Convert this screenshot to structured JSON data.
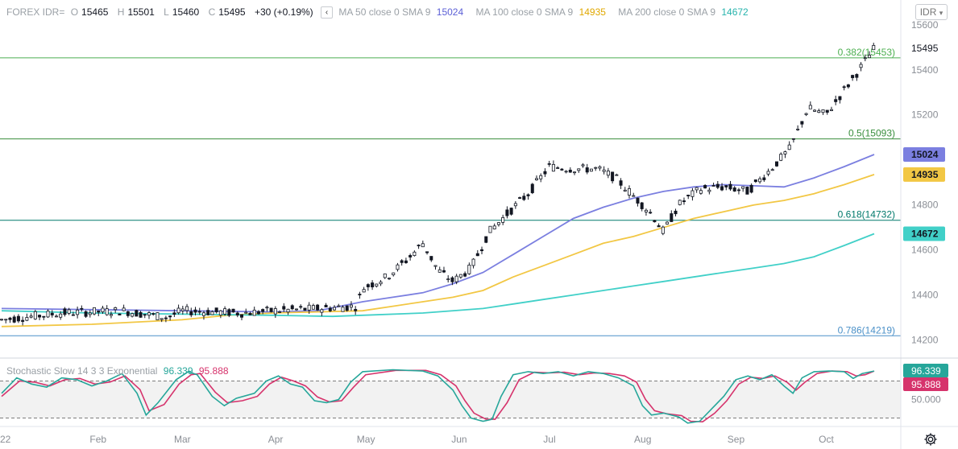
{
  "header": {
    "symbol": "FOREX IDR=",
    "o_label": "O",
    "o_value": "15465",
    "h_label": "H",
    "h_value": "15501",
    "l_label": "L",
    "l_value": "15460",
    "c_label": "C",
    "c_value": "15495",
    "change": "+30 (+0.19%)",
    "collapse_icon": "‹",
    "currency_button": "IDR",
    "currency_icon": "chevron-down-icon"
  },
  "moving_averages": [
    {
      "label": "MA 50 close 0 SMA 9",
      "value": "15024",
      "color": "#7b7fe0"
    },
    {
      "label": "MA 100 close 0 SMA 9",
      "value": "14935",
      "color": "#f2c744"
    },
    {
      "label": "MA 200 close 0 SMA 9",
      "value": "14672",
      "color": "#41d0c8"
    }
  ],
  "price_axis": {
    "ticks": [
      15600,
      15400,
      15200,
      15000,
      14800,
      14600,
      14400,
      14200
    ],
    "labels": [
      "15600",
      "15400",
      "15200",
      "",
      "14800",
      "14600",
      "14400",
      "14200"
    ],
    "last_price": "15495",
    "ylim": [
      14120,
      15660
    ]
  },
  "fib_levels": [
    {
      "label": "0.382(15453)",
      "value": 15453,
      "color": "#4caf50"
    },
    {
      "label": "0.5(15093)",
      "value": 15093,
      "color": "#388e3c"
    },
    {
      "label": "0.618(14732)",
      "value": 14732,
      "color": "#00796b"
    },
    {
      "label": "0.786(14219)",
      "value": 14219,
      "color": "#4a90c8"
    }
  ],
  "time_axis": {
    "labels": [
      "22",
      "Feb",
      "Mar",
      "Apr",
      "May",
      "Jun",
      "Jul",
      "Aug",
      "Sep",
      "Oct"
    ],
    "label_days": [
      0,
      31,
      59,
      90,
      120,
      151,
      181,
      212,
      243,
      273
    ]
  },
  "stochastic": {
    "title": "Stochastic Slow 14 3 3 Exponential",
    "k_value": "96.339",
    "d_value": "95.888",
    "k_color": "#26a69a",
    "d_color": "#d6336c",
    "axis_label": "50.000",
    "ylim": [
      0,
      100
    ],
    "upper_band": 80,
    "lower_band": 20
  },
  "settings_icon": "gear-icon",
  "chart_data": {
    "type": "candlestick",
    "price_range": [
      14120,
      15660
    ],
    "ma": {
      "ma50": [
        [
          0,
          14340
        ],
        [
          30,
          14335
        ],
        [
          60,
          14330
        ],
        [
          90,
          14325
        ],
        [
          105,
          14330
        ],
        [
          120,
          14370
        ],
        [
          130,
          14390
        ],
        [
          140,
          14410
        ],
        [
          150,
          14450
        ],
        [
          160,
          14500
        ],
        [
          170,
          14580
        ],
        [
          180,
          14660
        ],
        [
          190,
          14740
        ],
        [
          200,
          14790
        ],
        [
          210,
          14830
        ],
        [
          220,
          14860
        ],
        [
          230,
          14880
        ],
        [
          240,
          14890
        ],
        [
          250,
          14885
        ],
        [
          260,
          14880
        ],
        [
          270,
          14920
        ],
        [
          280,
          14970
        ],
        [
          290,
          15024
        ]
      ],
      "ma100": [
        [
          0,
          14260
        ],
        [
          30,
          14270
        ],
        [
          60,
          14290
        ],
        [
          75,
          14310
        ],
        [
          90,
          14320
        ],
        [
          105,
          14325
        ],
        [
          120,
          14330
        ],
        [
          130,
          14350
        ],
        [
          140,
          14370
        ],
        [
          150,
          14390
        ],
        [
          160,
          14420
        ],
        [
          170,
          14480
        ],
        [
          180,
          14530
        ],
        [
          190,
          14580
        ],
        [
          200,
          14630
        ],
        [
          210,
          14660
        ],
        [
          220,
          14700
        ],
        [
          230,
          14740
        ],
        [
          240,
          14770
        ],
        [
          250,
          14800
        ],
        [
          260,
          14820
        ],
        [
          270,
          14850
        ],
        [
          280,
          14890
        ],
        [
          290,
          14935
        ]
      ],
      "ma200": [
        [
          0,
          14330
        ],
        [
          30,
          14320
        ],
        [
          60,
          14315
        ],
        [
          90,
          14310
        ],
        [
          110,
          14305
        ],
        [
          120,
          14310
        ],
        [
          140,
          14320
        ],
        [
          160,
          14340
        ],
        [
          170,
          14360
        ],
        [
          180,
          14380
        ],
        [
          190,
          14400
        ],
        [
          200,
          14420
        ],
        [
          210,
          14440
        ],
        [
          220,
          14460
        ],
        [
          230,
          14480
        ],
        [
          240,
          14500
        ],
        [
          250,
          14520
        ],
        [
          260,
          14540
        ],
        [
          270,
          14570
        ],
        [
          280,
          14620
        ],
        [
          290,
          14672
        ]
      ]
    },
    "stoch_k": [
      [
        0,
        60
      ],
      [
        5,
        85
      ],
      [
        10,
        75
      ],
      [
        15,
        70
      ],
      [
        20,
        85
      ],
      [
        25,
        82
      ],
      [
        30,
        72
      ],
      [
        35,
        80
      ],
      [
        40,
        92
      ],
      [
        45,
        60
      ],
      [
        48,
        25
      ],
      [
        52,
        45
      ],
      [
        58,
        82
      ],
      [
        62,
        95
      ],
      [
        65,
        90
      ],
      [
        70,
        55
      ],
      [
        74,
        40
      ],
      [
        78,
        52
      ],
      [
        84,
        60
      ],
      [
        88,
        80
      ],
      [
        92,
        88
      ],
      [
        96,
        75
      ],
      [
        100,
        70
      ],
      [
        104,
        48
      ],
      [
        108,
        45
      ],
      [
        112,
        50
      ],
      [
        116,
        78
      ],
      [
        120,
        95
      ],
      [
        130,
        98
      ],
      [
        140,
        96
      ],
      [
        145,
        88
      ],
      [
        150,
        65
      ],
      [
        153,
        40
      ],
      [
        156,
        20
      ],
      [
        160,
        15
      ],
      [
        163,
        18
      ],
      [
        166,
        55
      ],
      [
        170,
        90
      ],
      [
        175,
        95
      ],
      [
        180,
        92
      ],
      [
        185,
        95
      ],
      [
        190,
        88
      ],
      [
        195,
        95
      ],
      [
        200,
        92
      ],
      [
        205,
        85
      ],
      [
        210,
        72
      ],
      [
        213,
        40
      ],
      [
        216,
        25
      ],
      [
        220,
        28
      ],
      [
        225,
        22
      ],
      [
        228,
        12
      ],
      [
        232,
        15
      ],
      [
        236,
        35
      ],
      [
        240,
        55
      ],
      [
        244,
        82
      ],
      [
        248,
        88
      ],
      [
        252,
        82
      ],
      [
        256,
        90
      ],
      [
        260,
        72
      ],
      [
        263,
        60
      ],
      [
        266,
        85
      ],
      [
        270,
        95
      ],
      [
        275,
        96
      ],
      [
        280,
        95
      ],
      [
        283,
        84
      ],
      [
        286,
        92
      ],
      [
        290,
        96
      ]
    ],
    "stoch_d": [
      [
        0,
        55
      ],
      [
        6,
        80
      ],
      [
        11,
        78
      ],
      [
        16,
        72
      ],
      [
        21,
        82
      ],
      [
        26,
        84
      ],
      [
        31,
        75
      ],
      [
        36,
        78
      ],
      [
        41,
        88
      ],
      [
        46,
        66
      ],
      [
        49,
        32
      ],
      [
        54,
        42
      ],
      [
        59,
        75
      ],
      [
        63,
        90
      ],
      [
        66,
        92
      ],
      [
        71,
        62
      ],
      [
        75,
        45
      ],
      [
        80,
        48
      ],
      [
        85,
        55
      ],
      [
        89,
        75
      ],
      [
        93,
        86
      ],
      [
        97,
        80
      ],
      [
        101,
        72
      ],
      [
        105,
        54
      ],
      [
        109,
        46
      ],
      [
        113,
        48
      ],
      [
        117,
        70
      ],
      [
        121,
        90
      ],
      [
        131,
        97
      ],
      [
        141,
        97
      ],
      [
        146,
        90
      ],
      [
        151,
        72
      ],
      [
        154,
        48
      ],
      [
        157,
        28
      ],
      [
        161,
        18
      ],
      [
        164,
        18
      ],
      [
        168,
        45
      ],
      [
        172,
        82
      ],
      [
        177,
        94
      ],
      [
        182,
        93
      ],
      [
        187,
        94
      ],
      [
        192,
        90
      ],
      [
        197,
        93
      ],
      [
        202,
        92
      ],
      [
        207,
        88
      ],
      [
        211,
        78
      ],
      [
        214,
        50
      ],
      [
        217,
        32
      ],
      [
        221,
        27
      ],
      [
        226,
        24
      ],
      [
        229,
        15
      ],
      [
        233,
        14
      ],
      [
        237,
        28
      ],
      [
        241,
        48
      ],
      [
        245,
        75
      ],
      [
        249,
        86
      ],
      [
        253,
        84
      ],
      [
        257,
        88
      ],
      [
        261,
        78
      ],
      [
        264,
        65
      ],
      [
        267,
        78
      ],
      [
        271,
        92
      ],
      [
        276,
        96
      ],
      [
        281,
        95
      ],
      [
        284,
        88
      ],
      [
        287,
        90
      ],
      [
        290,
        96
      ]
    ]
  }
}
